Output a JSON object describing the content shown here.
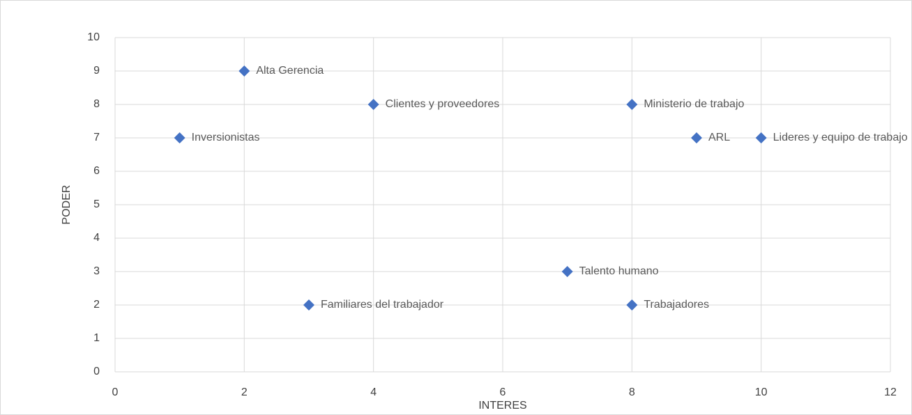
{
  "chart_data": {
    "type": "scatter",
    "x_label": "INTERES",
    "y_label": "PODER",
    "series": [
      {
        "color": "#4472c4",
        "x": [
          1,
          2,
          4,
          8,
          9,
          10,
          7,
          3,
          8
        ],
        "values": [
          7,
          9,
          8,
          8,
          7,
          7,
          3,
          2,
          2
        ],
        "point_labels": [
          "Inversionistas",
          "Alta Gerencia",
          "Clientes y proveedores",
          "Ministerio de trabajo",
          "ARL",
          "Lideres y equipo de trabajo",
          "Talento humano",
          "Familiares del trabajador",
          "Trabajadores"
        ]
      }
    ],
    "xlim": [
      0,
      12
    ],
    "xticks": [
      0,
      2,
      4,
      6,
      8,
      10,
      12
    ],
    "ylim": [
      0,
      10
    ],
    "yticks": [
      0,
      1,
      2,
      3,
      4,
      5,
      6,
      7,
      8,
      9,
      10
    ],
    "grid": true
  }
}
